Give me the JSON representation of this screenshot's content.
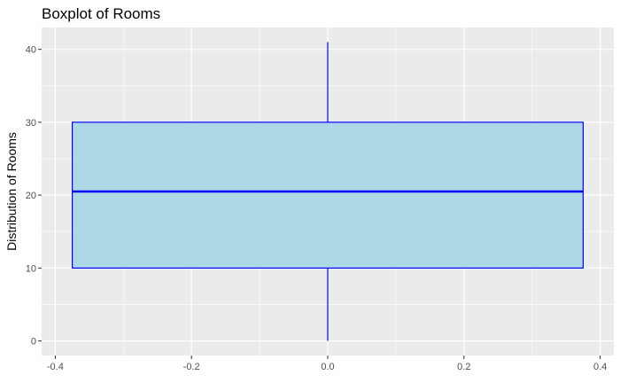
{
  "chart_data": {
    "type": "boxplot",
    "title": "Boxplot of Rooms",
    "xlabel": "",
    "ylabel": "Distribution of Rooms",
    "xlim": [
      -0.42,
      0.42
    ],
    "ylim": [
      -2,
      43
    ],
    "x_ticks": [
      -0.4,
      -0.2,
      0.0,
      0.2,
      0.4
    ],
    "x_tick_labels": [
      "-0.4",
      "-0.2",
      "0.0",
      "0.2",
      "0.4"
    ],
    "y_ticks": [
      0,
      10,
      20,
      30,
      40
    ],
    "y_tick_labels": [
      "0",
      "10",
      "20",
      "30",
      "40"
    ],
    "grid": true,
    "box": {
      "x_center": 0.0,
      "x_from": -0.375,
      "x_to": 0.375,
      "min": 0,
      "q1": 10,
      "median": 20.5,
      "q3": 30,
      "max": 41
    },
    "colors": {
      "panel_background": "#ebebeb",
      "grid_line": "#ffffff",
      "box_fill": "#add8e6",
      "box_stroke": "#0000ff"
    }
  }
}
